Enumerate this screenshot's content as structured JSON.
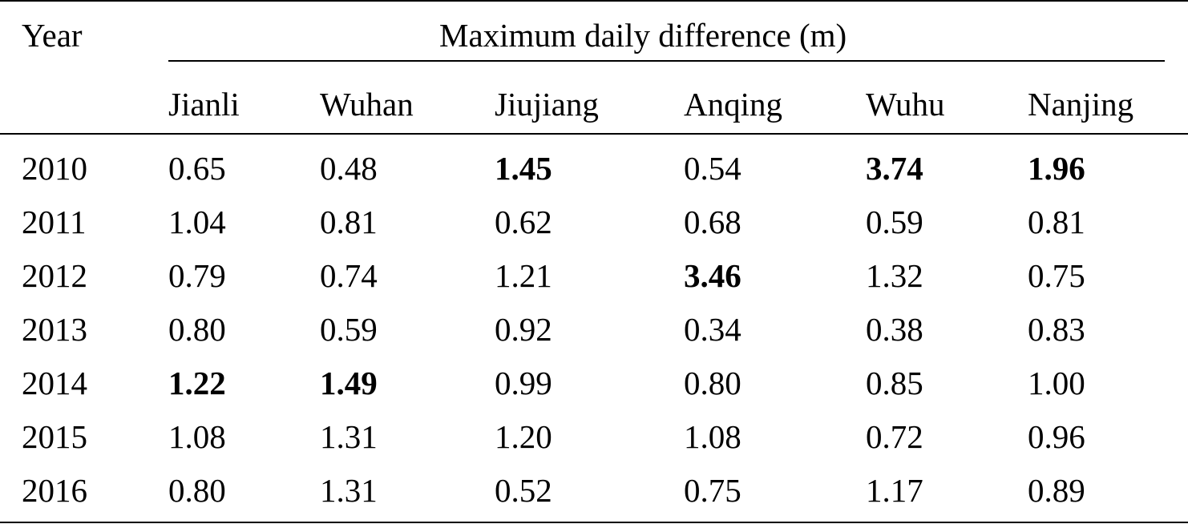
{
  "table": {
    "year_header": "Year",
    "group_header": "Maximum daily difference (m)",
    "stations": [
      "Jianli",
      "Wuhan",
      "Jiujiang",
      "Anqing",
      "Wuhu",
      "Nanjing"
    ],
    "rows": [
      {
        "year": "2010",
        "values": [
          "0.65",
          "0.48",
          "1.45",
          "0.54",
          "3.74",
          "1.96"
        ],
        "bold": [
          false,
          false,
          true,
          false,
          true,
          true
        ]
      },
      {
        "year": "2011",
        "values": [
          "1.04",
          "0.81",
          "0.62",
          "0.68",
          "0.59",
          "0.81"
        ],
        "bold": [
          false,
          false,
          false,
          false,
          false,
          false
        ]
      },
      {
        "year": "2012",
        "values": [
          "0.79",
          "0.74",
          "1.21",
          "3.46",
          "1.32",
          "0.75"
        ],
        "bold": [
          false,
          false,
          false,
          true,
          false,
          false
        ]
      },
      {
        "year": "2013",
        "values": [
          "0.80",
          "0.59",
          "0.92",
          "0.34",
          "0.38",
          "0.83"
        ],
        "bold": [
          false,
          false,
          false,
          false,
          false,
          false
        ]
      },
      {
        "year": "2014",
        "values": [
          "1.22",
          "1.49",
          "0.99",
          "0.80",
          "0.85",
          "1.00"
        ],
        "bold": [
          true,
          true,
          false,
          false,
          false,
          false
        ]
      },
      {
        "year": "2015",
        "values": [
          "1.08",
          "1.31",
          "1.20",
          "1.08",
          "0.72",
          "0.96"
        ],
        "bold": [
          false,
          false,
          false,
          false,
          false,
          false
        ]
      },
      {
        "year": "2016",
        "values": [
          "0.80",
          "1.31",
          "0.52",
          "0.75",
          "1.17",
          "0.89"
        ],
        "bold": [
          false,
          false,
          false,
          false,
          false,
          false
        ]
      }
    ]
  }
}
